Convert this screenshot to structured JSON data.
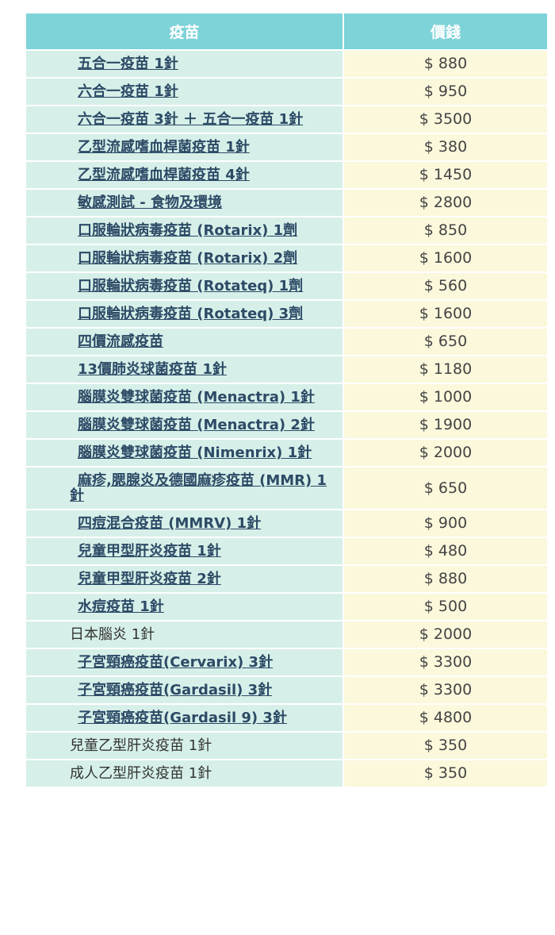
{
  "table": {
    "header": [
      "疫苗",
      "價錢"
    ],
    "rows": [
      {
        "name": "五合一疫苗 1針",
        "price": "$ 880",
        "link": true
      },
      {
        "name": "六合一疫苗 1針",
        "price": "$ 950",
        "link": true
      },
      {
        "name": "六合一疫苗 3針 ＋ 五合一疫苗 1針",
        "price": "$ 3500",
        "link": true
      },
      {
        "name": "乙型流感嗜血桿菌疫苗 1針",
        "price": "$ 380",
        "link": true
      },
      {
        "name": "乙型流感嗜血桿菌疫苗 4針",
        "price": "$ 1450",
        "link": true
      },
      {
        "name": "敏感測試 - 食物及環境",
        "price": "$ 2800",
        "link": true
      },
      {
        "name": "口服輪狀病毒疫苗 (Rotarix) 1劑",
        "price": "$ 850",
        "link": true
      },
      {
        "name": "口服輪狀病毒疫苗 (Rotarix) 2劑",
        "price": "$ 1600",
        "link": true
      },
      {
        "name": "口服輪狀病毒疫苗 (Rotateq) 1劑",
        "price": "$ 560",
        "link": true
      },
      {
        "name": "口服輪狀病毒疫苗 (Rotateq) 3劑",
        "price": "$ 1600",
        "link": true
      },
      {
        "name": "四價流感疫苗",
        "price": "$ 650",
        "link": true
      },
      {
        "name": "13價肺炎球菌疫苗 1針",
        "price": "$ 1180",
        "link": true
      },
      {
        "name": "腦膜炎雙球菌疫苗 (Menactra) 1針",
        "price": "$ 1000",
        "link": true
      },
      {
        "name": "腦膜炎雙球菌疫苗 (Menactra) 2針",
        "price": "$ 1900",
        "link": true
      },
      {
        "name": "腦膜炎雙球菌疫苗 (Nimenrix) 1針",
        "price": "$ 2000",
        "link": true
      },
      {
        "name": "麻疹,腮腺炎及德國麻疹疫苗 (MMR) 1針",
        "price": "$ 650",
        "link": true
      },
      {
        "name": "四痘混合疫苗 (MMRV) 1針",
        "price": "$ 900",
        "link": true
      },
      {
        "name": "兒童甲型肝炎疫苗 1針",
        "price": "$ 480",
        "link": true
      },
      {
        "name": "兒童甲型肝炎疫苗 2針",
        "price": "$ 880",
        "link": true
      },
      {
        "name": "水痘疫苗 1針",
        "price": "$ 500",
        "link": true
      },
      {
        "name": "日本腦炎 1針",
        "price": "$ 2000",
        "link": false
      },
      {
        "name": "子宮頸癌疫苗(Cervarix) 3針",
        "price": "$ 3300",
        "link": true
      },
      {
        "name": "子宮頸癌疫苗(Gardasil) 3針",
        "price": "$ 3300",
        "link": true
      },
      {
        "name": "子宮頸癌疫苗(Gardasil 9) 3針",
        "price": "$ 4800",
        "link": true
      },
      {
        "name": "兒童乙型肝炎疫苗 1針",
        "price": "$ 350",
        "link": false
      },
      {
        "name": "成人乙型肝炎疫苗 1針",
        "price": "$ 350",
        "link": false
      }
    ]
  }
}
